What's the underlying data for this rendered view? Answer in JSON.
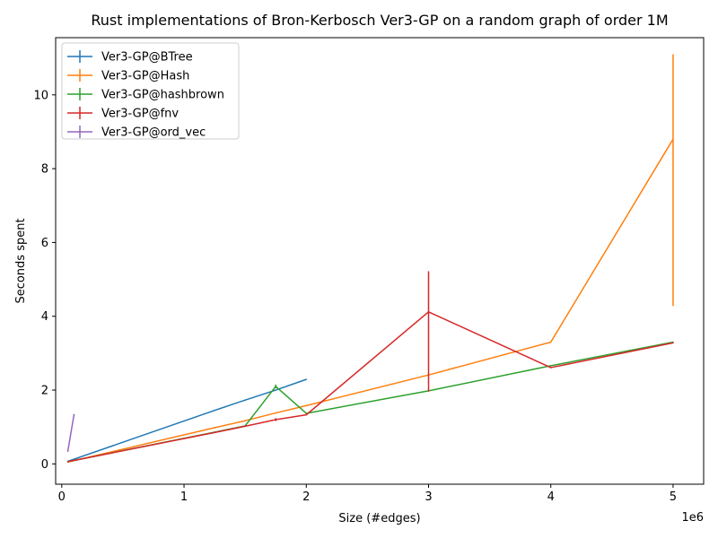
{
  "chart_data": {
    "type": "line",
    "title": "Rust implementations of Bron-Kerbosch Ver3-GP on a random graph of order 1M",
    "xlabel": "Size (#edges)",
    "ylabel": "Seconds spent",
    "x_offset_label": "1e6",
    "x_scale": 1000000,
    "xlim": [
      -50000,
      5250000
    ],
    "ylim": [
      -0.55,
      11.55
    ],
    "x_ticks": [
      0,
      1000000,
      2000000,
      3000000,
      4000000,
      5000000
    ],
    "x_tick_labels": [
      "0",
      "1",
      "2",
      "3",
      "4",
      "5"
    ],
    "y_ticks": [
      0,
      2,
      4,
      6,
      8,
      10
    ],
    "y_tick_labels": [
      "0",
      "2",
      "4",
      "6",
      "8",
      "10"
    ],
    "grid": false,
    "legend_position": "top-left",
    "series": [
      {
        "name": "Ver3-GP@BTree",
        "color": "#1f77b4",
        "x": [
          50000,
          1250000,
          1500000,
          1750000,
          2000000
        ],
        "y": [
          0.07,
          1.45,
          1.73,
          2.0,
          2.29
        ],
        "err_lo": [
          0.07,
          1.45,
          1.73,
          2.0,
          2.29
        ],
        "err_hi": [
          0.07,
          1.45,
          1.73,
          2.0,
          2.29
        ]
      },
      {
        "name": "Ver3-GP@Hash",
        "color": "#ff7f0e",
        "x": [
          50000,
          1250000,
          1500000,
          1750000,
          2000000,
          3000000,
          4000000,
          5000000
        ],
        "y": [
          0.05,
          0.98,
          1.17,
          1.38,
          1.58,
          2.41,
          3.3,
          8.8
        ],
        "err_lo": [
          0.05,
          0.96,
          1.17,
          1.38,
          1.58,
          2.38,
          3.3,
          4.28
        ],
        "err_hi": [
          0.05,
          1.0,
          1.17,
          1.38,
          1.58,
          2.43,
          3.3,
          11.1
        ]
      },
      {
        "name": "Ver3-GP@hashbrown",
        "color": "#2ca02c",
        "x": [
          50000,
          1250000,
          1500000,
          1750000,
          2000000,
          3000000,
          4000000,
          5000000
        ],
        "y": [
          0.06,
          0.86,
          1.03,
          2.1,
          1.37,
          1.98,
          2.66,
          3.3
        ],
        "err_lo": [
          0.06,
          0.86,
          1.03,
          2.05,
          1.37,
          1.98,
          2.66,
          3.3
        ],
        "err_hi": [
          0.06,
          0.86,
          1.03,
          2.15,
          1.37,
          1.98,
          2.66,
          3.3
        ]
      },
      {
        "name": "Ver3-GP@fnv",
        "color": "#d62728",
        "x": [
          50000,
          1250000,
          1500000,
          1750000,
          2000000,
          3000000,
          4000000,
          5000000
        ],
        "y": [
          0.06,
          0.85,
          1.02,
          1.2,
          1.33,
          4.12,
          2.61,
          3.28
        ],
        "err_lo": [
          0.06,
          0.85,
          1.02,
          1.16,
          1.33,
          1.96,
          2.61,
          3.28
        ],
        "err_hi": [
          0.06,
          0.85,
          1.02,
          1.24,
          1.33,
          5.22,
          2.61,
          3.28
        ]
      },
      {
        "name": "Ver3-GP@ord_vec",
        "color": "#9467bd",
        "x": [
          50000,
          100000
        ],
        "y": [
          0.35,
          1.33
        ],
        "err_lo": [
          0.33,
          1.31
        ],
        "err_hi": [
          0.37,
          1.35
        ]
      }
    ]
  }
}
